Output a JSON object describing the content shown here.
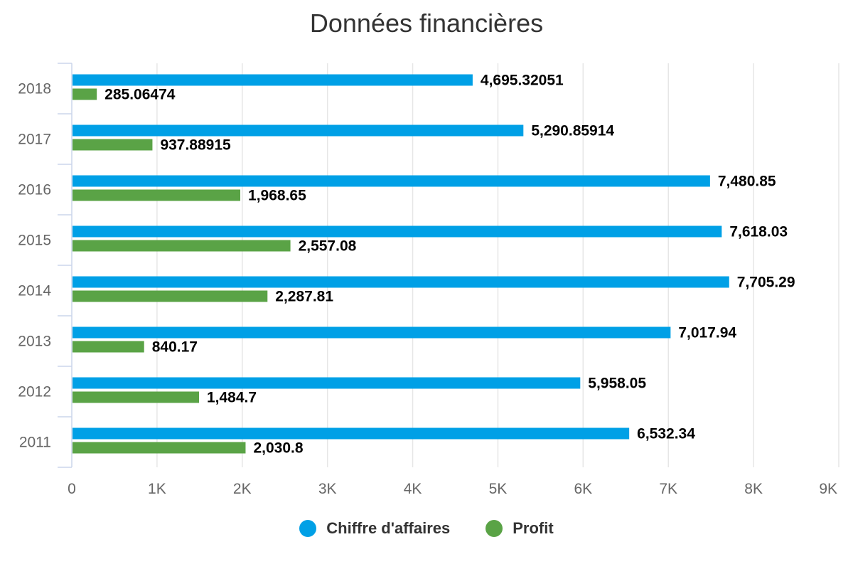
{
  "chart_data": {
    "type": "bar",
    "orientation": "horizontal",
    "title": "Données financières",
    "categories": [
      "2018",
      "2017",
      "2016",
      "2015",
      "2014",
      "2013",
      "2012",
      "2011"
    ],
    "series": [
      {
        "name": "Chiffre d'affaires",
        "color": "#00a0e6",
        "values": [
          4695.32051,
          5290.85914,
          7480.85,
          7618.03,
          7705.29,
          7017.94,
          5958.05,
          6532.34
        ],
        "labels": [
          "4,695.32051",
          "5,290.85914",
          "7,480.85",
          "7,618.03",
          "7,705.29",
          "7,017.94",
          "5,958.05",
          "6,532.34"
        ]
      },
      {
        "name": "Profit",
        "color": "#5aa346",
        "values": [
          285.06474,
          937.88915,
          1968.65,
          2557.08,
          2287.81,
          840.17,
          1484.7,
          2030.8
        ],
        "labels": [
          "285.06474",
          "937.88915",
          "1,968.65",
          "2,557.08",
          "2,287.81",
          "840.17",
          "1,484.7",
          "2,030.8"
        ]
      }
    ],
    "value_axis": {
      "range": [
        0,
        9000
      ],
      "ticks": [
        0,
        1000,
        2000,
        3000,
        4000,
        5000,
        6000,
        7000,
        8000,
        9000
      ],
      "tick_labels": [
        "0",
        "1K",
        "2K",
        "3K",
        "4K",
        "5K",
        "6K",
        "7K",
        "8K",
        "9K"
      ]
    },
    "grid": true,
    "legend_position": "bottom-center"
  }
}
